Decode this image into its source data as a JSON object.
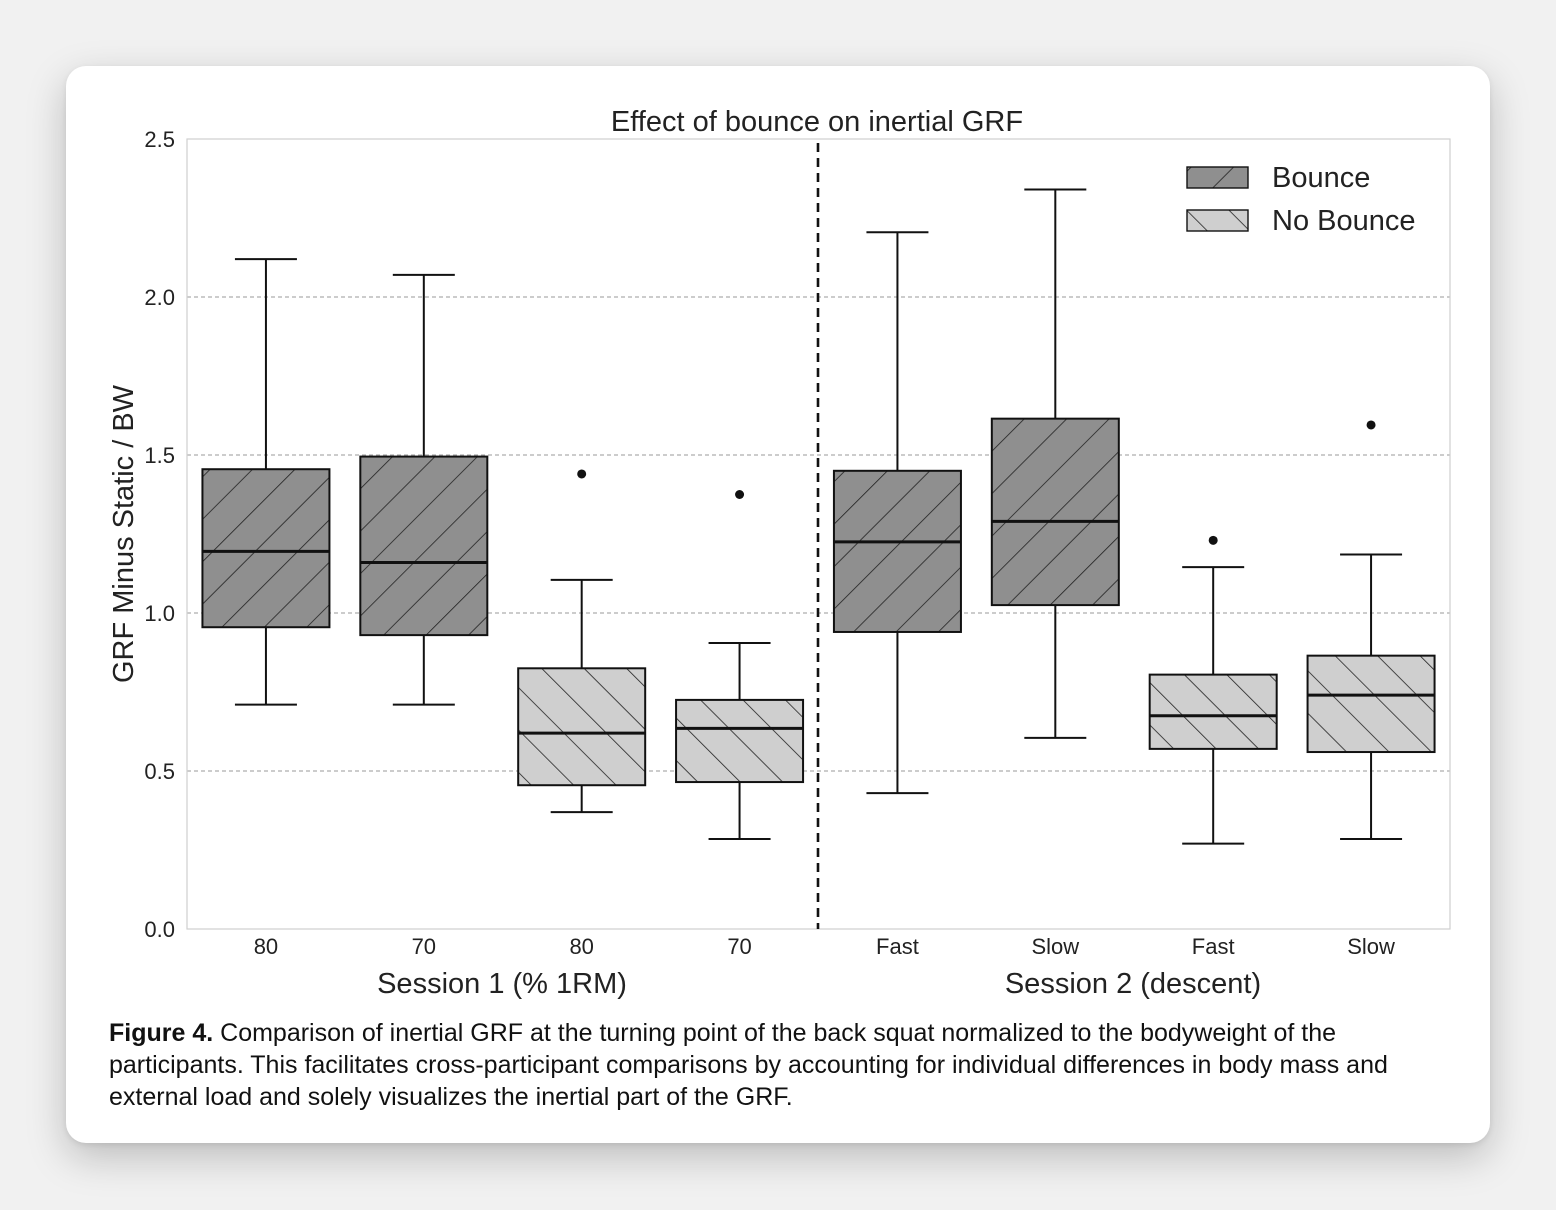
{
  "caption": {
    "label": "Figure 4.",
    "text": " Comparison of inertial GRF at the turning point of the back squat normalized to the bodyweight of the participants. This facilitates cross-participant comparisons by accounting for individual differences in body mass and external load and solely visualizes the inertial part of the GRF."
  },
  "colors": {
    "bounce_fill": "#8f8f8f",
    "nobounce_fill": "#cfcfcf",
    "grid": "#9a9a9a",
    "stroke": "#111111"
  },
  "chart_data": {
    "type": "box",
    "title": "Effect of bounce on inertial GRF",
    "ylabel": "GRF Minus Static / BW",
    "ylim": [
      0,
      2.5
    ],
    "yticks": [
      0.0,
      0.5,
      1.0,
      1.5,
      2.0,
      2.5
    ],
    "ytick_labels": [
      "0.0",
      "0.5",
      "1.0",
      "1.5",
      "2.0",
      "2.5"
    ],
    "grid": "horizontal dashed",
    "groups": [
      {
        "label": "Session 1 (% 1RM)",
        "categories": [
          "80",
          "70",
          "80",
          "70"
        ]
      },
      {
        "label": "Session 2 (descent)",
        "categories": [
          "Fast",
          "Slow",
          "Fast",
          "Slow"
        ]
      }
    ],
    "legend": {
      "position": "top-right",
      "entries": [
        {
          "name": "Bounce",
          "hatch": "forward"
        },
        {
          "name": "No Bounce",
          "hatch": "backward"
        }
      ]
    },
    "boxes": [
      {
        "category": "80",
        "session": "Session 1 (% 1RM)",
        "series": "Bounce",
        "whisker_low": 0.71,
        "q1": 0.955,
        "median": 1.195,
        "q3": 1.455,
        "whisker_high": 2.12,
        "outliers": []
      },
      {
        "category": "70",
        "session": "Session 1 (% 1RM)",
        "series": "Bounce",
        "whisker_low": 0.71,
        "q1": 0.93,
        "median": 1.16,
        "q3": 1.495,
        "whisker_high": 2.07,
        "outliers": []
      },
      {
        "category": "80",
        "session": "Session 1 (% 1RM)",
        "series": "No Bounce",
        "whisker_low": 0.37,
        "q1": 0.455,
        "median": 0.62,
        "q3": 0.825,
        "whisker_high": 1.105,
        "outliers": [
          1.44
        ]
      },
      {
        "category": "70",
        "session": "Session 1 (% 1RM)",
        "series": "No Bounce",
        "whisker_low": 0.285,
        "q1": 0.465,
        "median": 0.635,
        "q3": 0.725,
        "whisker_high": 0.905,
        "outliers": [
          1.375
        ]
      },
      {
        "category": "Fast",
        "session": "Session 2 (descent)",
        "series": "Bounce",
        "whisker_low": 0.43,
        "q1": 0.94,
        "median": 1.225,
        "q3": 1.45,
        "whisker_high": 2.205,
        "outliers": []
      },
      {
        "category": "Slow",
        "session": "Session 2 (descent)",
        "series": "Bounce",
        "whisker_low": 0.605,
        "q1": 1.025,
        "median": 1.29,
        "q3": 1.615,
        "whisker_high": 2.34,
        "outliers": []
      },
      {
        "category": "Fast",
        "session": "Session 2 (descent)",
        "series": "No Bounce",
        "whisker_low": 0.27,
        "q1": 0.57,
        "median": 0.675,
        "q3": 0.805,
        "whisker_high": 1.145,
        "outliers": [
          1.23
        ]
      },
      {
        "category": "Slow",
        "session": "Session 2 (descent)",
        "series": "No Bounce",
        "whisker_low": 0.285,
        "q1": 0.56,
        "median": 0.74,
        "q3": 0.865,
        "whisker_high": 1.185,
        "outliers": [
          1.595
        ]
      }
    ]
  }
}
